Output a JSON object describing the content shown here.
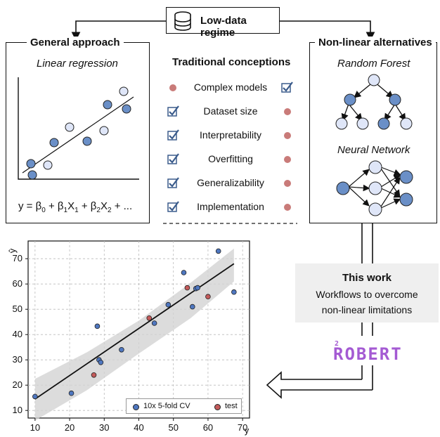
{
  "top": {
    "title": "Low-data regime"
  },
  "left_panel": {
    "title": "General approach",
    "subtitle": "Linear regression",
    "equation_parts": [
      "y = β",
      "0",
      " + β",
      "1",
      "X",
      "1",
      " + β",
      "2",
      "X",
      "2",
      " + ..."
    ]
  },
  "middle_panel": {
    "title": "Traditional conceptions",
    "items": [
      {
        "label": "Complex models",
        "left": "dot",
        "right": "check"
      },
      {
        "label": "Dataset size",
        "left": "check",
        "right": "dot"
      },
      {
        "label": "Interpretability",
        "left": "check",
        "right": "dot"
      },
      {
        "label": "Overfitting",
        "left": "check",
        "right": "dot"
      },
      {
        "label": "Generalizability",
        "left": "check",
        "right": "dot"
      },
      {
        "label": "Implementation",
        "left": "check",
        "right": "dot"
      }
    ]
  },
  "right_panel": {
    "title": "Non-linear alternatives",
    "rf_label": "Random Forest",
    "nn_label": "Neural Network"
  },
  "this_work": {
    "title": "This work",
    "line1": "Workflows to overcome",
    "line2": "non-linear limitations"
  },
  "logo": {
    "sup": "2",
    "text": "ROBERT"
  },
  "colors": {
    "blue": "#6a8fc7",
    "light_blue": "#dfe6f8",
    "red": "#c45b5b",
    "check": "#3b5c8c",
    "logo": "#a45ad3"
  },
  "chart_data": {
    "type": "scatter",
    "xlabel": "y",
    "ylabel": "ŷ",
    "xlim": [
      8,
      72
    ],
    "ylim": [
      7,
      77
    ],
    "xticks": [
      10,
      20,
      30,
      40,
      50,
      60,
      70
    ],
    "yticks": [
      10,
      20,
      30,
      40,
      50,
      60,
      70
    ],
    "grid": true,
    "legend_position": "bottom-right",
    "series": [
      {
        "name": "10x 5-fold CV",
        "color": "#4f77c0",
        "points": [
          [
            10,
            15.5
          ],
          [
            20.5,
            16.8
          ],
          [
            28,
            43.3
          ],
          [
            28.5,
            30
          ],
          [
            29,
            29
          ],
          [
            35,
            34
          ],
          [
            44.5,
            44.5
          ],
          [
            48.5,
            51.8
          ],
          [
            53,
            64.5
          ],
          [
            55.5,
            51
          ],
          [
            56.5,
            58.2
          ],
          [
            57,
            58.5
          ],
          [
            63,
            73
          ],
          [
            67.5,
            56.8
          ]
        ]
      },
      {
        "name": "test",
        "color": "#c45b5b",
        "points": [
          [
            27,
            24
          ],
          [
            43,
            46.5
          ],
          [
            54,
            58.5
          ],
          [
            60,
            55
          ]
        ]
      }
    ],
    "fit_line": {
      "x": [
        10,
        67.5
      ],
      "y": [
        14.5,
        68
      ]
    },
    "confidence_band": {
      "x": [
        10,
        25,
        40,
        55,
        67.5
      ],
      "upper": [
        22.5,
        33,
        45.5,
        60.5,
        74
      ],
      "lower": [
        6,
        18,
        32.5,
        46.5,
        61
      ]
    }
  }
}
